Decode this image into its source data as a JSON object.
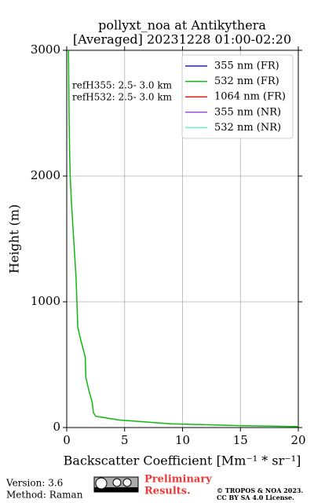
{
  "chart_data": {
    "type": "line",
    "title": [
      "pollyxt_noa at Antikythera",
      "[Averaged] 20231228 01:00-02:20"
    ],
    "x_label": "Backscatter Coefficient [Mm⁻¹ * sr⁻¹]",
    "y_label": "Height (m)",
    "annotations": [
      "refH355:  2.5- 3.0 km",
      "refH532:  2.5- 3.0 km"
    ],
    "y": [
      7.5,
      15,
      30,
      60,
      90,
      120,
      200,
      300,
      400,
      560,
      700,
      800,
      950,
      1200,
      1500,
      1800,
      2000,
      2200,
      2500,
      3000
    ],
    "series": [
      {
        "name": "355 nm (FR)",
        "color": "#1f1fd8",
        "values": [
          null,
          null,
          null,
          null,
          null,
          null,
          null,
          null,
          null,
          null,
          null,
          null,
          null,
          null,
          null,
          null,
          null,
          null,
          null,
          null
        ]
      },
      {
        "name": "532 nm (FR)",
        "color": "#10b810",
        "values": [
          20,
          15,
          9,
          4.5,
          2.5,
          2.3,
          2.2,
          1.9,
          1.65,
          1.6,
          1.2,
          0.95,
          0.9,
          0.8,
          0.6,
          0.4,
          0.3,
          0.25,
          0.2,
          0.15
        ]
      },
      {
        "name": "1064 nm (FR)",
        "color": "#d82020",
        "values": [
          null,
          null,
          null,
          null,
          null,
          null,
          null,
          null,
          null,
          null,
          null,
          null,
          null,
          null,
          null,
          null,
          null,
          null,
          null,
          null
        ]
      },
      {
        "name": "355 nm (NR)",
        "color": "#a050e0",
        "values": [
          null,
          null,
          null,
          null,
          null,
          null,
          null,
          null,
          null,
          null,
          null,
          null,
          null,
          null,
          null,
          null,
          null,
          null,
          null,
          null
        ]
      },
      {
        "name": "532 nm (NR)",
        "color": "#60f0d0",
        "values": [
          null,
          null,
          null,
          null,
          null,
          null,
          null,
          null,
          null,
          null,
          null,
          null,
          null,
          null,
          null,
          null,
          null,
          null,
          null,
          null
        ]
      }
    ],
    "xlim": [
      0,
      20
    ],
    "xticks": [
      0,
      5,
      10,
      15,
      20
    ],
    "ylim": [
      0,
      3000
    ],
    "yticks": [
      0,
      1000,
      2000,
      3000
    ],
    "grid": true,
    "legend": "upper right"
  },
  "footer": {
    "version": "Version: 3.6",
    "method": "Method: Raman",
    "notice": [
      "Preliminary",
      "Results."
    ],
    "copyright": [
      "© TROPOS & NOA 2023.",
      "CC BY SA 4.0 License."
    ]
  }
}
